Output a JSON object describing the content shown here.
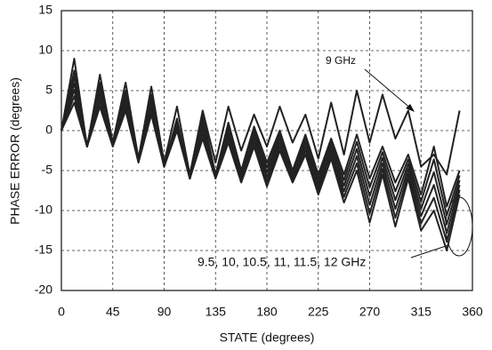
{
  "chart_data": {
    "type": "line",
    "xlabel": "STATE (degrees)",
    "ylabel": "PHASE ERROR  (degrees)",
    "x": [
      0,
      11.25,
      22.5,
      33.75,
      45,
      56.25,
      67.5,
      78.75,
      90,
      101.25,
      112.5,
      123.75,
      135,
      146.25,
      157.5,
      168.75,
      180,
      191.25,
      202.5,
      213.75,
      225,
      236.25,
      247.5,
      258.75,
      270,
      281.25,
      292.5,
      303.75,
      315,
      326.25,
      337.5,
      348.75
    ],
    "series": [
      {
        "color": "#222222",
        "values": [
          0,
          9,
          -2,
          7,
          -1.5,
          6,
          -3.5,
          5.5,
          -4,
          3,
          -5.5,
          2.5,
          -4,
          3,
          -2.5,
          2,
          -2,
          3,
          -1.5,
          2,
          -3.5,
          3.5,
          -3,
          5,
          -1.5,
          4.5,
          -1,
          2.5,
          -4.5,
          -3,
          -5.5,
          2.5
        ]
      },
      {
        "color": "#222222",
        "values": [
          0,
          7.5,
          -2,
          6,
          -1.5,
          5,
          -3.5,
          4.5,
          -4.5,
          1.5,
          -6,
          2,
          -5.5,
          1,
          -5,
          0.5,
          -4,
          0,
          -5,
          -0.5,
          -5.5,
          -1,
          -5.5,
          -0.5,
          -6,
          -2,
          -6.5,
          -3,
          -8,
          -2,
          -9.5,
          -5
        ]
      },
      {
        "color": "#222222",
        "values": [
          0,
          6.7,
          -2,
          5.4,
          -1.6,
          4.5,
          -3.6,
          4,
          -4.5,
          1.2,
          -6,
          1.4,
          -5.6,
          0.5,
          -5.3,
          0,
          -4.6,
          -0.5,
          -5.3,
          -1,
          -6,
          -1.5,
          -6.2,
          -1.4,
          -7.1,
          -2.7,
          -7.6,
          -3.6,
          -8.9,
          -3.6,
          -10.6,
          -5.6
        ]
      },
      {
        "color": "#222222",
        "values": [
          0,
          5.9,
          -2,
          4.8,
          -1.7,
          4,
          -3.7,
          3.5,
          -4.5,
          0.9,
          -6,
          0.8,
          -5.7,
          0,
          -5.6,
          -0.5,
          -5.2,
          -1,
          -5.6,
          -1.5,
          -6.5,
          -2,
          -6.9,
          -2.3,
          -8.2,
          -3.4,
          -8.7,
          -4.2,
          -9.8,
          -5.2,
          -11.7,
          -6.2
        ]
      },
      {
        "color": "#222222",
        "values": [
          0,
          5.1,
          -2,
          4.2,
          -1.8,
          3.5,
          -3.8,
          3,
          -4.5,
          0.6,
          -6,
          0.2,
          -5.8,
          -0.5,
          -5.9,
          -1,
          -5.8,
          -1.5,
          -5.9,
          -2,
          -7,
          -2.5,
          -7.6,
          -3.2,
          -9.3,
          -4.1,
          -9.8,
          -4.8,
          -10.7,
          -6.8,
          -12.8,
          -6.8
        ]
      },
      {
        "color": "#222222",
        "values": [
          0,
          4.3,
          -2,
          3.6,
          -1.9,
          3,
          -3.9,
          2.5,
          -4.5,
          0.3,
          -6,
          -0.4,
          -5.9,
          -1,
          -6.2,
          -1.5,
          -6.4,
          -2,
          -6.2,
          -2.5,
          -7.5,
          -3,
          -8.3,
          -4.1,
          -10.4,
          -4.8,
          -10.9,
          -5.4,
          -11.6,
          -8.4,
          -13.9,
          -7.4
        ]
      },
      {
        "color": "#222222",
        "values": [
          0,
          3.5,
          -2,
          3,
          -2,
          2.5,
          -4,
          2,
          -4.5,
          0,
          -6,
          -1,
          -6,
          -1.5,
          -6.5,
          -2,
          -7,
          -2.5,
          -6.5,
          -3,
          -8,
          -3.5,
          -9,
          -5,
          -11.5,
          -5.5,
          -12,
          -6,
          -12.5,
          -10,
          -15,
          -8
        ]
      }
    ],
    "annotations": [
      "9 GHz",
      "9.5, 10, 10.5, 11, 11.5, 12  GHz"
    ],
    "xlim": [
      0,
      360
    ],
    "xticks": [
      0,
      45,
      90,
      135,
      180,
      225,
      270,
      315,
      360
    ],
    "ylim": [
      -20,
      15
    ],
    "yticks": [
      -20,
      -15,
      -10,
      -5,
      0,
      5,
      10,
      15
    ],
    "grid": true
  }
}
